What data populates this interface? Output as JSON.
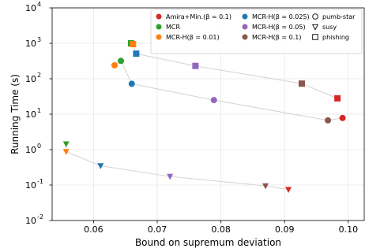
{
  "chart_data": {
    "type": "scatter",
    "title": "",
    "xlabel": "Bound on supremum deviation",
    "ylabel": "Running Time (s)",
    "xlim": [
      0.0535,
      0.1025
    ],
    "ylim": [
      0.01,
      10000
    ],
    "yscale": "log",
    "grid": true,
    "legend_position": "top-right",
    "x_ticks": [
      0.06,
      0.07,
      0.08,
      0.09,
      0.1
    ],
    "x_tick_labels": [
      "0.06",
      "0.07",
      "0.08",
      "0.09",
      "0.10"
    ],
    "y_ticks": [
      0.01,
      0.1,
      1,
      10,
      100,
      1000,
      10000
    ],
    "y_tick_labels": [
      "10",
      "10",
      "10",
      "10",
      "10",
      "10",
      "10"
    ],
    "y_tick_exponents": [
      "-2",
      "-1",
      "0",
      "1",
      "2",
      "3",
      "4"
    ],
    "series": [
      {
        "name": "Amira+Min.(β = 0.1)",
        "color": "#d62728",
        "points": [
          {
            "dataset": "pumb-star",
            "x": 0.0991,
            "y": 7.8
          },
          {
            "dataset": "susy",
            "x": 0.0906,
            "y": 0.075
          },
          {
            "dataset": "phishing",
            "x": 0.0983,
            "y": 28
          }
        ]
      },
      {
        "name": "MCR",
        "color": "#2ca02c",
        "points": [
          {
            "dataset": "pumb-star",
            "x": 0.0643,
            "y": 320
          },
          {
            "dataset": "susy",
            "x": 0.0557,
            "y": 1.45
          },
          {
            "dataset": "phishing",
            "x": 0.0659,
            "y": 1000
          }
        ]
      },
      {
        "name": "MCR-H(β = 0.01)",
        "color": "#ff7f0e",
        "points": [
          {
            "dataset": "pumb-star",
            "x": 0.0633,
            "y": 240
          },
          {
            "dataset": "susy",
            "x": 0.0557,
            "y": 0.88
          },
          {
            "dataset": "phishing",
            "x": 0.0662,
            "y": 950
          }
        ]
      },
      {
        "name": "MCR-H(β = 0.025)",
        "color": "#1f77b4",
        "points": [
          {
            "dataset": "pumb-star",
            "x": 0.066,
            "y": 72
          },
          {
            "dataset": "susy",
            "x": 0.0611,
            "y": 0.35
          },
          {
            "dataset": "phishing",
            "x": 0.0667,
            "y": 510
          }
        ]
      },
      {
        "name": "MCR-H(β = 0.05)",
        "color": "#9467bd",
        "points": [
          {
            "dataset": "pumb-star",
            "x": 0.0789,
            "y": 25
          },
          {
            "dataset": "susy",
            "x": 0.072,
            "y": 0.175
          },
          {
            "dataset": "phishing",
            "x": 0.076,
            "y": 230
          }
        ]
      },
      {
        "name": "MCR-H(β = 0.1)",
        "color": "#8c564b",
        "points": [
          {
            "dataset": "pumb-star",
            "x": 0.0968,
            "y": 6.7
          },
          {
            "dataset": "susy",
            "x": 0.087,
            "y": 0.095
          },
          {
            "dataset": "phishing",
            "x": 0.0927,
            "y": 73
          }
        ]
      }
    ],
    "markers": [
      {
        "label": "pumb-star",
        "shape": "circle"
      },
      {
        "label": "susy",
        "shape": "triangle-down"
      },
      {
        "label": "phishing",
        "shape": "square"
      }
    ],
    "connector_color": "#d3d3d3"
  }
}
